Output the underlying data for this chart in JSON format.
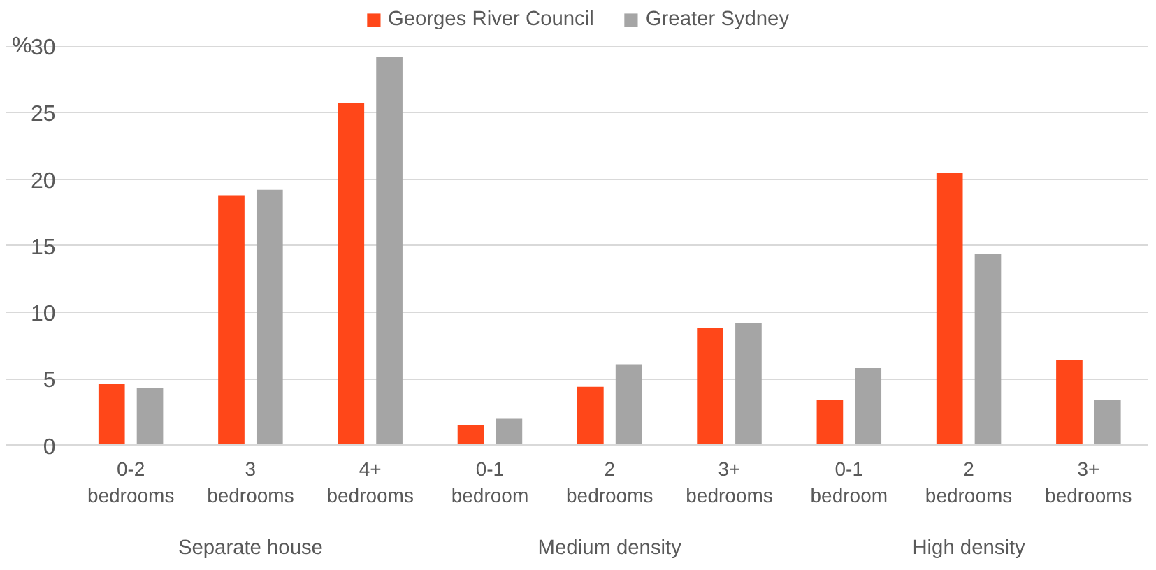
{
  "chart_data": {
    "type": "bar",
    "ylabel": "%",
    "categories": [
      "0-2 bedrooms",
      "3 bedrooms",
      "4+ bedrooms",
      "0-1 bedroom",
      "2 bedrooms",
      "3+ bedrooms",
      "0-1 bedroom",
      "2 bedrooms",
      "3+ bedrooms"
    ],
    "series": [
      {
        "name": "Georges River Council",
        "color": "#ff4719",
        "values": [
          4.6,
          18.8,
          25.7,
          1.5,
          4.4,
          8.8,
          3.4,
          20.5,
          6.4
        ]
      },
      {
        "name": "Greater Sydney",
        "color": "#a5a5a5",
        "values": [
          4.3,
          19.2,
          29.2,
          2.0,
          6.1,
          9.2,
          5.8,
          14.4,
          3.4
        ]
      }
    ],
    "annotations": [
      "Separate house",
      "Medium density",
      "High density"
    ],
    "ylim": [
      0,
      30
    ],
    "yticks": [
      0,
      5,
      10,
      15,
      20,
      25,
      30
    ],
    "grid": "y",
    "legend": "top"
  }
}
